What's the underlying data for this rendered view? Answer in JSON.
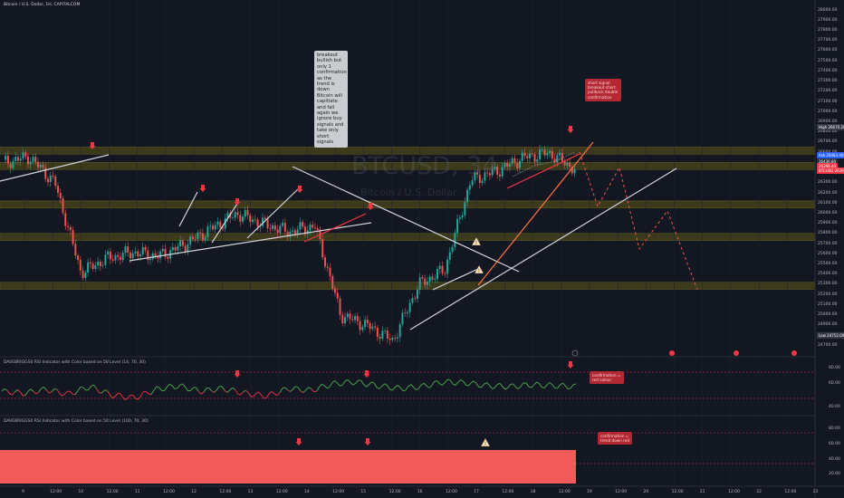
{
  "header": {
    "symbol_line": "Bitcoin / U.S. Dollar, 1H, CAPITALCOM"
  },
  "watermark": {
    "ticker": "BTCUSD, 34",
    "name": "Bitcoin / U.S. Dollar"
  },
  "notes": {
    "breakout": "breakout bullish but only 1 confirmation as the trend is down Bitcoin will capitlate and fall again we ignore buy signals and take only short signals",
    "short_signal": "short signal breakout short pullback double confirmation",
    "rsi1": "confirmation = red colour",
    "rsi2": "confirmation = trend down red"
  },
  "indicators": {
    "rsi1_label": "DAVEBRIGGS0 RSI Indicator with Color based on 50 Level (14, 70, 30)",
    "rsi2_label": "DAVEBRIGGS0 RSI Indicator with Color based on 50 Level (100, 70, 30)"
  },
  "price_axis": {
    "ticks": [
      "28000.00",
      "27900.00",
      "27800.00",
      "27700.00",
      "27600.00",
      "27500.00",
      "27400.00",
      "27300.00",
      "27200.00",
      "27100.00",
      "27000.00",
      "26900.00",
      "26800.00",
      "26700.00",
      "26600.00",
      "26500.00",
      "26400.00",
      "26300.00",
      "26200.00",
      "26100.00",
      "26000.00",
      "25900.00",
      "25800.00",
      "25700.00",
      "25600.00",
      "25500.00",
      "25400.00",
      "25300.00",
      "25200.00",
      "25100.00",
      "25000.00",
      "24900.00",
      "24800.00",
      "24700.00",
      "24600.00"
    ],
    "badges": [
      {
        "text": "High 26670.20",
        "color": "#363a45"
      },
      {
        "text": "Ask 26483.40",
        "color": "#2962ff"
      },
      {
        "text": "26436.80",
        "color": "#2a2e39"
      },
      {
        "text": "26398.40",
        "color": "#f23645"
      },
      {
        "text": "BTCUSD 26398.40",
        "color": "#f23645"
      },
      {
        "text": "Low 24752.00",
        "color": "#363a45"
      }
    ],
    "rsi1_ticks": [
      "80.00",
      "60.00",
      "40.00"
    ],
    "rsi2_ticks": [
      "80.00",
      "60.00",
      "40.00",
      "20.00"
    ]
  },
  "time_axis": {
    "labels": [
      "9",
      "12:00",
      "10",
      "12:00",
      "11",
      "12:00",
      "12",
      "12:00",
      "13",
      "12:00",
      "14",
      "12:00",
      "15",
      "12:00",
      "16",
      "12:00",
      "17",
      "12:00",
      "18",
      "12:00",
      "19",
      "12:00",
      "20",
      "12:00",
      "21",
      "12:00",
      "22",
      "12:00",
      "23"
    ]
  },
  "colors": {
    "bg": "#131722",
    "up": "#26a69a",
    "down": "#ef5350",
    "zone": "#3d3a1c",
    "rsi_fill": "#f25b5b"
  },
  "chart_data": {
    "type": "candlestick",
    "symbol": "BTCUSD",
    "interval": "1H",
    "ylim": [
      24600,
      28050
    ],
    "key_levels": [
      26620,
      26470,
      26090,
      25770,
      25290
    ],
    "close_path": [
      {
        "t": "9",
        "price": 26500
      },
      {
        "t": "9 12:00",
        "price": 26560
      },
      {
        "t": "10",
        "price": 26300
      },
      {
        "t": "10 06:00",
        "price": 25420
      },
      {
        "t": "10 12:00",
        "price": 25560
      },
      {
        "t": "11",
        "price": 25620
      },
      {
        "t": "11 12:00",
        "price": 25580
      },
      {
        "t": "12",
        "price": 25700
      },
      {
        "t": "12 12:00",
        "price": 25850
      },
      {
        "t": "13",
        "price": 26000
      },
      {
        "t": "13 12:00",
        "price": 25900
      },
      {
        "t": "14",
        "price": 25820
      },
      {
        "t": "14 12:00",
        "price": 25880
      },
      {
        "t": "15",
        "price": 25000
      },
      {
        "t": "15 12:00",
        "price": 24900
      },
      {
        "t": "16",
        "price": 24750
      },
      {
        "t": "16 06:00",
        "price": 25300
      },
      {
        "t": "16 12:00",
        "price": 25450
      },
      {
        "t": "17",
        "price": 26330
      },
      {
        "t": "17 12:00",
        "price": 26420
      },
      {
        "t": "18",
        "price": 26550
      },
      {
        "t": "18 12:00",
        "price": 26600
      },
      {
        "t": "19",
        "price": 26440
      }
    ],
    "projection": [
      {
        "t": "19",
        "price": 26440
      },
      {
        "t": "19 12:00",
        "price": 26000
      },
      {
        "t": "20",
        "price": 26250
      },
      {
        "t": "20 06:00",
        "price": 25500
      },
      {
        "t": "20 12:00",
        "price": 25750
      },
      {
        "t": "21",
        "price": 25120
      }
    ],
    "rsi14_series": [
      50,
      48,
      52,
      47,
      55,
      46,
      43,
      52,
      56,
      50,
      53,
      48,
      45,
      53,
      51,
      58,
      60,
      56,
      53,
      55,
      60,
      59,
      56,
      55,
      57,
      56,
      55
    ],
    "rsi100_level": 50
  }
}
